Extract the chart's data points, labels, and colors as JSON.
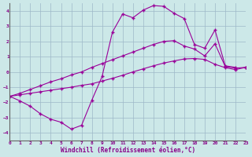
{
  "bg_color": "#cce8e8",
  "grid_color": "#9eb8c8",
  "line_color": "#990099",
  "xlabel": "Windchill (Refroidissement éolien,°C)",
  "xlim": [
    0,
    23
  ],
  "ylim": [
    -4.5,
    4.5
  ],
  "xticks": [
    0,
    1,
    2,
    3,
    4,
    5,
    6,
    7,
    8,
    9,
    10,
    11,
    12,
    13,
    14,
    15,
    16,
    17,
    18,
    19,
    20,
    21,
    22,
    23
  ],
  "yticks": [
    -4,
    -3,
    -2,
    -1,
    0,
    1,
    2,
    3,
    4
  ],
  "curve1_x": [
    0,
    1,
    2,
    3,
    4,
    5,
    6,
    7,
    8,
    9,
    10,
    11,
    12,
    13,
    14,
    15,
    16,
    17,
    18,
    19,
    20,
    21,
    22
  ],
  "curve1_y": [
    -1.6,
    -1.9,
    -2.25,
    -2.75,
    -3.1,
    -3.3,
    -3.75,
    -3.5,
    -1.85,
    -0.3,
    2.6,
    3.8,
    3.55,
    4.05,
    4.35,
    4.3,
    3.85,
    3.5,
    1.8,
    1.55,
    2.75,
    0.4,
    0.3
  ],
  "curve2_x": [
    0,
    1,
    2,
    3,
    4,
    5,
    6,
    7,
    8,
    9,
    10,
    11,
    12,
    13,
    14,
    15,
    16,
    17,
    18,
    19,
    20,
    21,
    22,
    23
  ],
  "curve2_y": [
    -1.6,
    -1.4,
    -1.15,
    -0.9,
    -0.65,
    -0.45,
    -0.2,
    0.0,
    0.3,
    0.55,
    0.8,
    1.05,
    1.3,
    1.55,
    1.8,
    2.0,
    2.05,
    1.7,
    1.5,
    1.05,
    1.85,
    0.35,
    0.25,
    0.3
  ],
  "curve3_x": [
    0,
    1,
    2,
    3,
    4,
    5,
    6,
    7,
    8,
    9,
    10,
    11,
    12,
    13,
    14,
    15,
    16,
    17,
    18,
    19,
    20,
    21,
    22,
    23
  ],
  "curve3_y": [
    -1.6,
    -1.5,
    -1.4,
    -1.3,
    -1.2,
    -1.1,
    -1.0,
    -0.88,
    -0.78,
    -0.6,
    -0.42,
    -0.22,
    0.0,
    0.2,
    0.4,
    0.58,
    0.72,
    0.85,
    0.88,
    0.82,
    0.5,
    0.28,
    0.15,
    0.3
  ]
}
